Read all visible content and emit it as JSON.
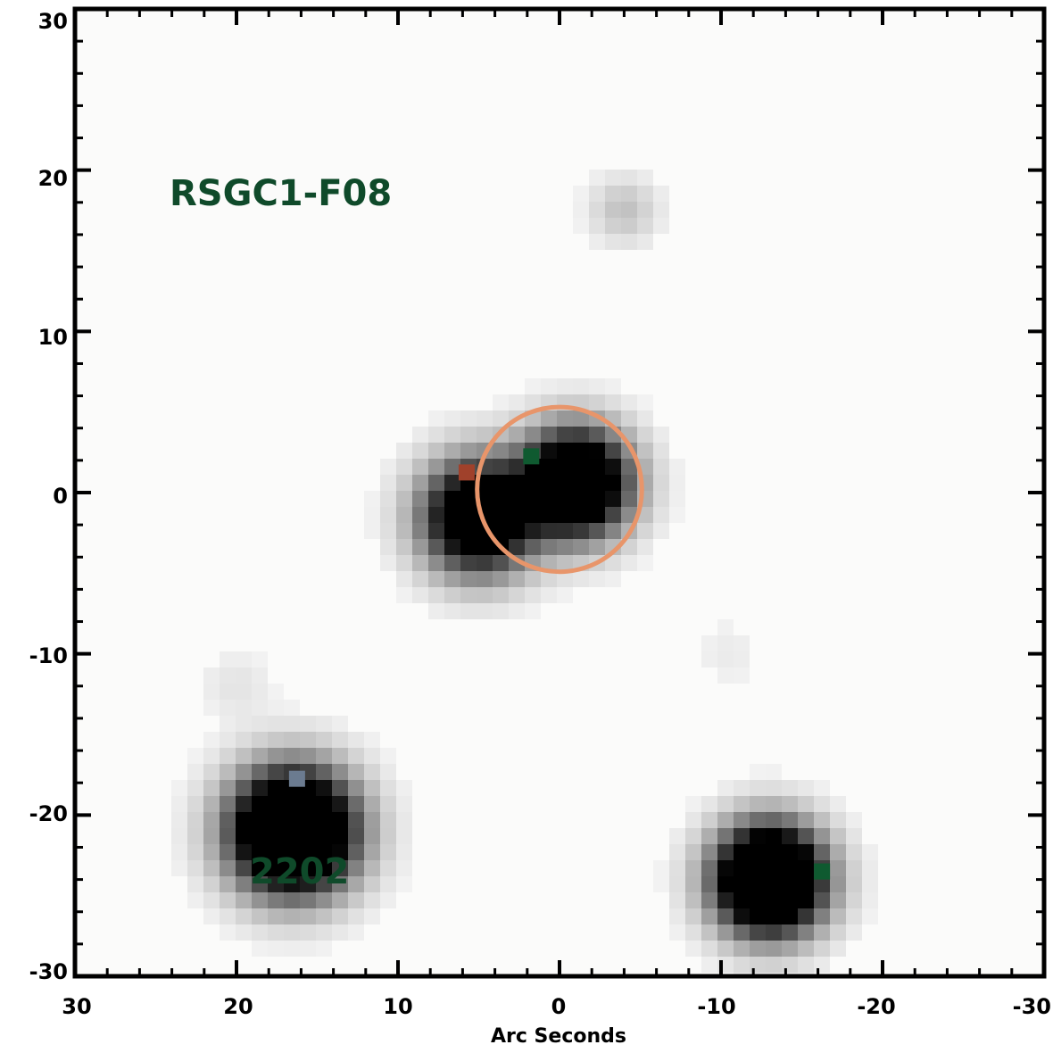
{
  "image": {
    "field_name": "RSGC1-F08",
    "source_label": "2202",
    "x_axis_title": "Arc Seconds",
    "x_ticks": [
      "30",
      "20",
      "10",
      "0",
      "-10",
      "-20",
      "-30"
    ],
    "y_ticks": [
      "30",
      "20",
      "10",
      "0",
      "-10",
      "-20",
      "-30"
    ],
    "x_range_arcsec": [
      30,
      -30
    ],
    "y_range_arcsec": [
      -30,
      30
    ],
    "colors": {
      "annotation": "#0f4a2a",
      "aperture_circle": "#e8956a",
      "frame": "#000000",
      "background": "#fbfbfa"
    },
    "aperture": {
      "x": 0,
      "y": 0.2,
      "radius": 5.1
    },
    "sources": [
      {
        "name": "central-pair-left",
        "x": 5,
        "y": -1.5,
        "sigma": 2.3,
        "peak": 1.6
      },
      {
        "name": "central-pair-right",
        "x": -1,
        "y": 0.6,
        "sigma": 2.2,
        "peak": 1.8
      },
      {
        "name": "2202",
        "x": 16.5,
        "y": -21,
        "sigma": 2.5,
        "peak": 2.2
      },
      {
        "name": "lower-right",
        "x": -13,
        "y": -24,
        "sigma": 2.2,
        "peak": 2.2
      },
      {
        "name": "faint-top",
        "x": -4,
        "y": 17.5,
        "sigma": 1.4,
        "peak": 0.18
      },
      {
        "name": "faint-left",
        "x": 20,
        "y": -12,
        "sigma": 1.5,
        "peak": 0.06
      },
      {
        "name": "faint-right",
        "x": -10.5,
        "y": -10,
        "sigma": 1.5,
        "peak": 0.04
      }
    ],
    "colored_pixels": [
      {
        "x": 5.75,
        "y": 1.25,
        "color": "#a0412b"
      },
      {
        "x": 1.75,
        "y": 2.25,
        "color": "#0f5a30"
      },
      {
        "x": -16.25,
        "y": -23.5,
        "color": "#0f5a30"
      },
      {
        "x": 16.25,
        "y": -17.75,
        "color": "#6b7b90"
      }
    ]
  }
}
